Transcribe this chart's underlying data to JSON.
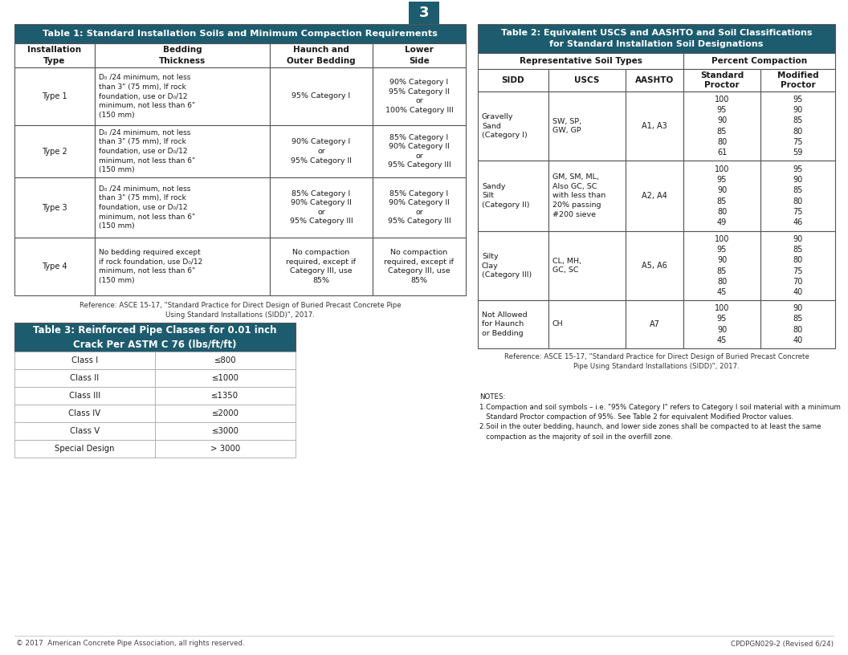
{
  "page_number": "3",
  "page_bg": "#ffffff",
  "header_color": "#1d5c6e",
  "header_text_color": "#ffffff",
  "border_color": "#555555",
  "light_border": "#aaaaaa",
  "table1_title": "Table 1: Standard Installation Soils and Minimum Compaction Requirements",
  "table1_headers": [
    "Installation\nType",
    "Bedding\nThickness",
    "Haunch and\nOuter Bedding",
    "Lower\nSide"
  ],
  "table1_rows": [
    [
      "Type 1",
      "D₀ /24 minimum, not less\nthan 3\" (75 mm), If rock\nfoundation, use or D₀/12\nminimum, not less than 6\"\n(150 mm)",
      "95% Category I",
      "90% Category I\n95% Category II\nor\n100% Category III"
    ],
    [
      "Type 2",
      "D₀ /24 minimum, not less\nthan 3\" (75 mm), If rock\nfoundation, use or D₀/12\nminimum, not less than 6\"\n(150 mm)",
      "90% Category I\nor\n95% Category II",
      "85% Category I\n90% Category II\nor\n95% Category III"
    ],
    [
      "Type 3",
      "D₀ /24 minimum, not less\nthan 3\" (75 mm), If rock\nfoundation, use or D₀/12\nminimum, not less than 6\"\n(150 mm)",
      "85% Category I\n90% Category II\nor\n95% Category III",
      "85% Category I\n90% Category II\nor\n95% Category III"
    ],
    [
      "Type 4",
      "No bedding required except\nif rock foundation, use D₀/12\nminimum, not less than 6\"\n(150 mm)",
      "No compaction\nrequired, except if\nCategory III, use\n85%",
      "No compaction\nrequired, except if\nCategory III, use\n85%"
    ]
  ],
  "table1_ref": "Reference: ASCE 15-17, \"Standard Practice for Direct Design of Buried Precast Concrete Pipe\nUsing Standard Installations (SIDD)\", 2017.",
  "table2_title": "Table 2: Equivalent USCS and AASHTO and Soil Classifications\nfor Standard Installation Soil Designations",
  "table2_subheader1": "Representative Soil Types",
  "table2_subheader2": "Percent Compaction",
  "table2_col_headers": [
    "SIDD",
    "USCS",
    "AASHTO",
    "Standard\nProctor",
    "Modified\nProctor"
  ],
  "table2_rows": [
    [
      "Gravelly\nSand\n(Category I)",
      "SW, SP,\nGW, GP",
      "A1, A3",
      "100\n95\n90\n85\n80\n61",
      "95\n90\n85\n80\n75\n59"
    ],
    [
      "Sandy\nSilt\n(Category II)",
      "GM, SM, ML,\nAlso GC, SC\nwith less than\n20% passing\n#200 sieve",
      "A2, A4",
      "100\n95\n90\n85\n80\n49",
      "95\n90\n85\n80\n75\n46"
    ],
    [
      "Silty\nClay\n(Category III)",
      "CL, MH,\nGC, SC",
      "A5, A6",
      "100\n95\n90\n85\n80\n45",
      "90\n85\n80\n75\n70\n40"
    ],
    [
      "Not Allowed\nfor Haunch\nor Bedding",
      "CH",
      "A7",
      "100\n95\n90\n45",
      "90\n85\n80\n40"
    ]
  ],
  "table2_ref": "Reference: ASCE 15-17, \"Standard Practice for Direct Design of Buried Precast Concrete\nPipe Using Standard Installations (SIDD)\", 2017.",
  "table3_title": "Table 3: Reinforced Pipe Classes for 0.01 inch\nCrack Per ASTM C 76 (lbs/ft/ft)",
  "table3_classes": [
    "Class I",
    "Class II",
    "Class III",
    "Class IV",
    "Class V",
    "Special Design"
  ],
  "table3_values": [
    "≤800",
    "≤1000",
    "≤1350",
    "≤2000",
    "≤3000",
    "> 3000"
  ],
  "notes_text": "NOTES:\n1.Compaction and soil symbols – i.e. \"95% Category I\" refers to Category I soil material with a minimum\n   Standard Proctor compaction of 95%. See Table 2 for equivalent Modified Proctor values.\n2.Soil in the outer bedding, haunch, and lower side zones shall be compacted to at least the same\n   compaction as the majority of soil in the overfill zone.",
  "footer_left": "© 2017  American Concrete Pipe Association, all rights reserved.",
  "footer_right": "CPDPGN029-2 (Revised 6/24)"
}
